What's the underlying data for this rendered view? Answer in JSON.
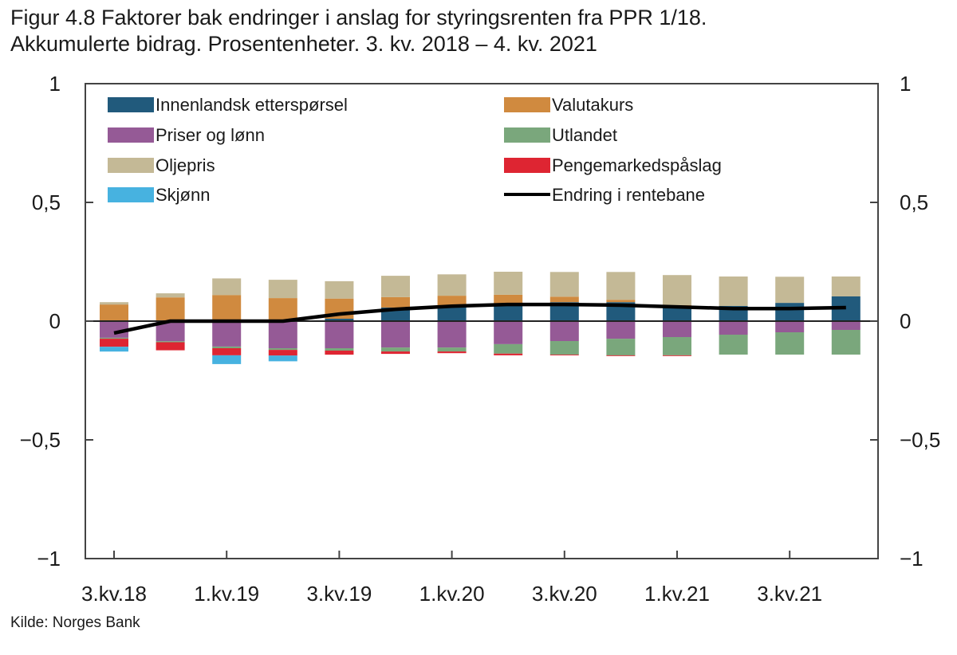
{
  "title": {
    "line1": "Figur 4.8 Faktorer bak endringer i anslag for styringsrenten fra PPR 1/18.",
    "line2": "Akkumulerte bidrag. Prosentenheter. 3. kv. 2018 – 4. kv. 2021"
  },
  "source": "Kilde: Norges Bank",
  "chart_data": {
    "type": "bar",
    "stacked": true,
    "title": "Figur 4.8 Faktorer bak endringer i anslag for styringsrenten fra PPR 1/18. Akkumulerte bidrag. Prosentenheter. 3. kv. 2018 – 4. kv. 2021",
    "xlabel": "",
    "ylabel": "",
    "ylim": [
      -1,
      1
    ],
    "yticks": [
      1,
      0.5,
      0,
      -0.5,
      -1
    ],
    "ytick_labels": [
      "1",
      "0,5",
      "0",
      "−0,5",
      "−1"
    ],
    "categories": [
      "3.kv.18",
      "4.kv.18",
      "1.kv.19",
      "2.kv.19",
      "3.kv.19",
      "4.kv.19",
      "1.kv.20",
      "2.kv.20",
      "3.kv.20",
      "4.kv.20",
      "1.kv.21",
      "2.kv.21",
      "3.kv.21",
      "4.kv.21"
    ],
    "xtick_labels": [
      "3.kv.18",
      "1.kv.19",
      "3.kv.19",
      "1.kv.20",
      "3.kv.20",
      "1.kv.21",
      "3.kv.21"
    ],
    "legend_position": "top",
    "series": [
      {
        "name": "Innenlandsk etterspørsel",
        "color": "#215a7c",
        "values": [
          0,
          0,
          0,
          0,
          0.01,
          0.057,
          0.063,
          0.074,
          0.08,
          0.08,
          0.064,
          0.064,
          0.077,
          0.104
        ]
      },
      {
        "name": "Valutakurs",
        "color": "#d08a3f",
        "values": [
          0.07,
          0.1,
          0.11,
          0.097,
          0.085,
          0.044,
          0.044,
          0.037,
          0.023,
          0.01,
          0.003,
          0,
          0,
          0
        ]
      },
      {
        "name": "Priser og lønn",
        "color": "#955a96",
        "values": [
          -0.07,
          -0.085,
          -0.107,
          -0.114,
          -0.114,
          -0.111,
          -0.111,
          -0.097,
          -0.084,
          -0.074,
          -0.067,
          -0.057,
          -0.047,
          -0.037
        ]
      },
      {
        "name": "Utlandet",
        "color": "#7aa77c",
        "values": [
          -0.004,
          -0.004,
          -0.007,
          -0.007,
          -0.01,
          -0.017,
          -0.017,
          -0.04,
          -0.057,
          -0.07,
          -0.077,
          -0.084,
          -0.094,
          -0.104
        ]
      },
      {
        "name": "Oljepris",
        "color": "#c4b996",
        "values": [
          0.01,
          0.017,
          0.07,
          0.077,
          0.073,
          0.09,
          0.09,
          0.097,
          0.104,
          0.117,
          0.127,
          0.124,
          0.11,
          0.084
        ]
      },
      {
        "name": "Pengemarkedspåslag",
        "color": "#de2532",
        "values": [
          -0.034,
          -0.034,
          -0.03,
          -0.024,
          -0.017,
          -0.01,
          -0.007,
          -0.007,
          -0.003,
          -0.003,
          -0.003,
          0,
          0,
          0
        ]
      },
      {
        "name": "Skjønn",
        "color": "#47b2e0",
        "values": [
          -0.02,
          0,
          -0.037,
          -0.024,
          0,
          0,
          0,
          0,
          0,
          0,
          0,
          0,
          0,
          0
        ]
      }
    ],
    "line": {
      "name": "Endring i rentebane",
      "color": "#000000",
      "values": [
        -0.05,
        0,
        0,
        0,
        0.03,
        0.05,
        0.063,
        0.07,
        0.07,
        0.067,
        0.06,
        0.053,
        0.053,
        0.057
      ]
    },
    "legend_order": [
      "Innenlandsk etterspørsel",
      "Valutakurs",
      "Priser og lønn",
      "Utlandet",
      "Oljepris",
      "Pengemarkedspåslag",
      "Skjønn",
      "Endring i rentebane"
    ]
  }
}
